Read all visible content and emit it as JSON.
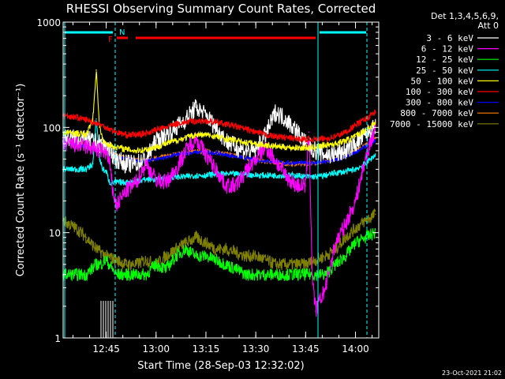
{
  "chart_data": {
    "type": "line",
    "title": "RHESSI Observing Summary Count Rates, Corrected",
    "xlabel": "Start Time (28-Sep-03 12:32:02)",
    "ylabel": "Corrected Count Rate (s⁻¹ detector⁻¹)",
    "yscale": "log",
    "ylim": [
      1,
      1000
    ],
    "xlim": [
      "12:32:02",
      "14:07:00"
    ],
    "y_ticks": [
      "1",
      "10",
      "100",
      "1000"
    ],
    "x_ticks": [
      "12:45",
      "13:00",
      "13:15",
      "13:30",
      "13:45",
      "14:00"
    ],
    "legend_header": [
      "Det 1,3,4,5,6,9,",
      "Att 0"
    ],
    "legend_position": "right",
    "flags": {
      "F": "F",
      "N": "N"
    },
    "footer": "23-Oct-2021 21:02",
    "series": [
      {
        "name": "3 - 6 keV",
        "color": "#ffffff",
        "x": [
          12.533,
          12.6,
          12.667,
          12.717,
          12.75,
          12.767,
          12.783,
          12.8,
          12.85,
          12.9,
          12.95,
          13.0,
          13.05,
          13.1,
          13.15,
          13.2,
          13.25,
          13.3,
          13.35,
          13.4,
          13.45,
          13.5,
          13.55,
          13.6,
          13.65,
          13.7,
          13.75,
          13.8,
          13.85,
          13.9,
          13.95,
          14.0,
          14.05,
          14.1
        ],
        "y": [
          80,
          78,
          75,
          70,
          65,
          60,
          55,
          50,
          45,
          45,
          50,
          75,
          85,
          100,
          120,
          155,
          130,
          100,
          75,
          65,
          60,
          60,
          85,
          140,
          120,
          95,
          70,
          60,
          55,
          55,
          60,
          70,
          85,
          100
        ]
      },
      {
        "name": "6 - 12 keV",
        "color": "#ff00ff",
        "x": [
          12.533,
          12.6,
          12.667,
          12.717,
          12.75,
          12.767,
          12.783,
          12.8,
          12.85,
          12.9,
          12.95,
          13.0,
          13.05,
          13.1,
          13.15,
          13.2,
          13.25,
          13.3,
          13.35,
          13.4,
          13.45,
          13.5,
          13.55,
          13.6,
          13.65,
          13.7,
          13.75,
          13.767,
          13.783,
          13.8,
          13.85,
          13.9,
          13.95,
          14.0,
          14.05,
          14.1
        ],
        "y": [
          70,
          68,
          65,
          60,
          58,
          45,
          25,
          18,
          25,
          30,
          45,
          32,
          30,
          40,
          60,
          80,
          55,
          40,
          28,
          28,
          38,
          50,
          65,
          48,
          35,
          28,
          28,
          90,
          4,
          1.8,
          3,
          8,
          12,
          20,
          50,
          100
        ]
      },
      {
        "name": "12 - 25 keV",
        "color": "#00ff00",
        "x": [
          12.533,
          12.6,
          12.65,
          12.7,
          12.717,
          12.75,
          12.8,
          12.85,
          12.9,
          12.95,
          13.0,
          13.05,
          13.1,
          13.15,
          13.2,
          13.25,
          13.3,
          13.35,
          13.4,
          13.45,
          13.5,
          13.55,
          13.6,
          13.65,
          13.7,
          13.75,
          13.8,
          13.85,
          13.9,
          13.95,
          14.0,
          14.05,
          14.1
        ],
        "y": [
          4,
          4,
          4,
          5,
          5,
          5.5,
          4,
          4,
          4,
          4,
          5,
          4.5,
          6,
          7,
          6,
          6,
          5.5,
          5,
          4.5,
          4,
          4,
          4,
          4,
          4,
          4,
          4,
          4,
          4,
          5,
          6,
          8,
          9,
          10
        ]
      },
      {
        "name": "25 - 50 keV",
        "color": "#00ffff",
        "x": [
          12.533,
          12.6,
          12.65,
          12.683,
          12.7,
          12.717,
          12.733,
          12.75,
          12.767,
          12.8,
          12.85,
          12.9,
          12.95,
          13.0,
          13.05,
          13.1,
          13.15,
          13.2,
          13.25,
          13.3,
          13.35,
          13.4,
          13.45,
          13.5,
          13.55,
          13.6,
          13.65,
          13.7,
          13.75,
          13.8,
          13.85,
          13.9,
          13.95,
          14.0,
          14.05,
          14.1
        ],
        "y": [
          40,
          40,
          40,
          45,
          120,
          50,
          40,
          38,
          30,
          30,
          30,
          31,
          32,
          32,
          33,
          34,
          34,
          35,
          35,
          36,
          36,
          36,
          36,
          35,
          35,
          35,
          35,
          35,
          34,
          34,
          35,
          37,
          38,
          40,
          45,
          55
        ]
      },
      {
        "name": "50 - 100 keV",
        "color": "#ffff00",
        "x": [
          12.533,
          12.6,
          12.65,
          12.683,
          12.7,
          12.717,
          12.733,
          12.75,
          12.8,
          12.85,
          12.9,
          12.95,
          13.0,
          13.05,
          13.1,
          13.15,
          13.2,
          13.25,
          13.3,
          13.35,
          13.4,
          13.45,
          13.5,
          13.55,
          13.6,
          13.65,
          13.7,
          13.75,
          13.8,
          13.85,
          13.9,
          13.95,
          14.0,
          14.05,
          14.1
        ],
        "y": [
          90,
          88,
          85,
          120,
          350,
          100,
          75,
          70,
          65,
          62,
          60,
          62,
          65,
          70,
          75,
          80,
          85,
          85,
          82,
          78,
          75,
          72,
          70,
          68,
          66,
          65,
          64,
          64,
          65,
          68,
          70,
          75,
          82,
          95,
          110
        ]
      },
      {
        "name": "100 - 300 keV",
        "color": "#ff0000",
        "x": [
          12.533,
          12.6,
          12.65,
          12.7,
          12.75,
          12.8,
          12.85,
          12.9,
          12.95,
          13.0,
          13.05,
          13.1,
          13.15,
          13.2,
          13.25,
          13.3,
          13.35,
          13.4,
          13.45,
          13.5,
          13.55,
          13.6,
          13.65,
          13.7,
          13.75,
          13.8,
          13.85,
          13.9,
          13.95,
          14.0,
          14.05,
          14.1
        ],
        "y": [
          130,
          125,
          118,
          110,
          100,
          90,
          85,
          85,
          88,
          95,
          100,
          108,
          112,
          115,
          115,
          112,
          108,
          102,
          96,
          90,
          85,
          82,
          80,
          78,
          77,
          77,
          78,
          82,
          90,
          105,
          120,
          140
        ]
      },
      {
        "name": "300 - 800 keV",
        "color": "#0000ff",
        "x": [
          12.533,
          12.6,
          12.65,
          12.7,
          12.75,
          12.8,
          12.85,
          12.9,
          12.95,
          13.0,
          13.05,
          13.1,
          13.15,
          13.2,
          13.25,
          13.3,
          13.35,
          13.4,
          13.45,
          13.5,
          13.55,
          13.6,
          13.65,
          13.7,
          13.75,
          13.8,
          13.85,
          13.9,
          13.95,
          14.0,
          14.05,
          14.1
        ],
        "y": [
          72,
          70,
          66,
          62,
          58,
          53,
          50,
          48,
          48,
          50,
          52,
          55,
          57,
          58,
          58,
          57,
          55,
          53,
          51,
          49,
          48,
          47,
          46,
          46,
          46,
          46,
          47,
          49,
          52,
          58,
          66,
          75
        ]
      },
      {
        "name": "800 - 7000 keV",
        "color": "#ff8000",
        "x": [
          12.533,
          12.6,
          12.65,
          12.7,
          12.75,
          12.8,
          12.85,
          12.9,
          12.95,
          13.0,
          13.05,
          13.1,
          13.15,
          13.2,
          13.25,
          13.3,
          13.35,
          13.4,
          13.45,
          13.5,
          13.55,
          13.6,
          13.65,
          13.7,
          13.75,
          13.8,
          13.85,
          13.9,
          13.95,
          14.0,
          14.05,
          14.1
        ],
        "y": [
          75,
          72,
          68,
          63,
          58,
          54,
          51,
          49,
          49,
          51,
          53,
          56,
          58,
          59,
          59,
          58,
          56,
          54,
          51,
          49,
          47,
          46,
          45,
          45,
          45,
          46,
          47,
          50,
          54,
          60,
          68,
          78
        ]
      },
      {
        "name": "7000 - 15000 keV",
        "color": "#808000",
        "x": [
          12.533,
          12.6,
          12.65,
          12.7,
          12.75,
          12.8,
          12.85,
          12.9,
          12.95,
          13.0,
          13.05,
          13.1,
          13.15,
          13.2,
          13.25,
          13.3,
          13.35,
          13.4,
          13.45,
          13.5,
          13.55,
          13.6,
          13.65,
          13.7,
          13.75,
          13.8,
          13.85,
          13.9,
          13.95,
          14.0,
          14.05,
          14.1
        ],
        "y": [
          13,
          11,
          9,
          7,
          6,
          5.5,
          5,
          5,
          5.5,
          5,
          6,
          7,
          8,
          9,
          8,
          7,
          7,
          6.5,
          6,
          6,
          5.5,
          5,
          5,
          5,
          5,
          5.5,
          6,
          7,
          9,
          11,
          13,
          15
        ]
      }
    ]
  }
}
